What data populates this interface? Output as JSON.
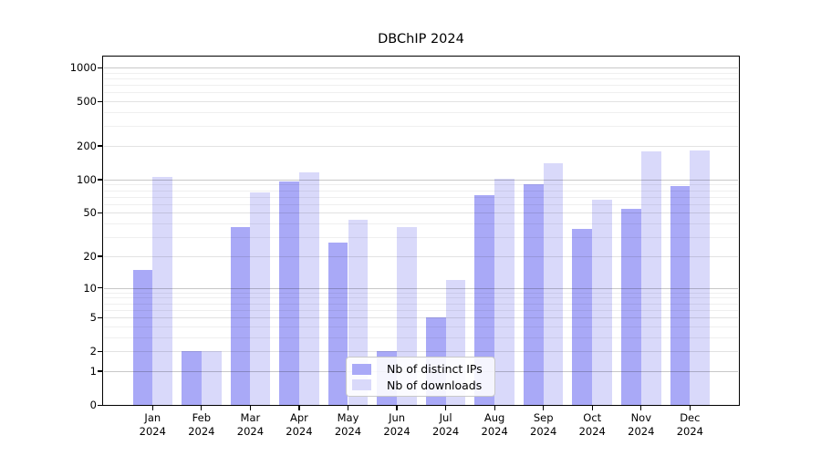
{
  "chart_data": {
    "type": "bar",
    "title": "DBChIP 2024",
    "categories": [
      "Jan",
      "Feb",
      "Mar",
      "Apr",
      "May",
      "Jun",
      "Jul",
      "Aug",
      "Sep",
      "Oct",
      "Nov",
      "Dec"
    ],
    "year_label": "2024",
    "series": [
      {
        "name": "Nb of distinct IPs",
        "color": "#a9a9f7",
        "values": [
          15,
          2,
          37,
          96,
          27,
          2,
          5,
          72,
          90,
          36,
          54,
          87
        ]
      },
      {
        "name": "Nb of downloads",
        "color": "#d9d9fa",
        "values": [
          105,
          2,
          77,
          117,
          43,
          37,
          12,
          101,
          140,
          66,
          180,
          183
        ]
      }
    ],
    "y_axis": {
      "scale": "log1p",
      "ticks": [
        0,
        1,
        2,
        5,
        10,
        20,
        50,
        100,
        200,
        500,
        1000
      ],
      "ylim": [
        0,
        1000
      ]
    },
    "xlabel": "",
    "ylabel": "",
    "grid": true,
    "legend_position": "lower center",
    "grid_major_color": "#c8c8c8",
    "grid_mid_color": "#e2e2e2",
    "grid_minor_color": "#efefef",
    "frame_color": "#000000",
    "background_color": "#ffffff"
  }
}
